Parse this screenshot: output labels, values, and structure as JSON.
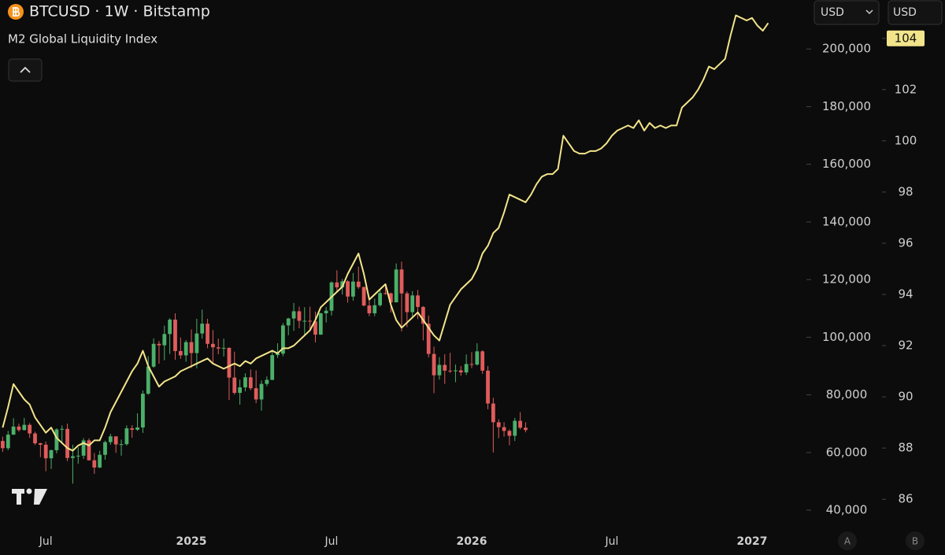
{
  "chart_data": {
    "type": "candlestick",
    "title": "BTCUSD · 1W · Bitstamp",
    "categories": [
      null,
      null,
      null,
      null,
      null,
      null,
      null,
      null,
      "Jul",
      null,
      null,
      null,
      null,
      null,
      null,
      null,
      null,
      null,
      null,
      null,
      null,
      null,
      null,
      null,
      null,
      null,
      null,
      null,
      null,
      null,
      null,
      null,
      null,
      null,
      null,
      "2025",
      null,
      null,
      null,
      null,
      null,
      null,
      null,
      null,
      null,
      null,
      null,
      null,
      null,
      null,
      null,
      null,
      null,
      null,
      null,
      null,
      null,
      null,
      null,
      null,
      null,
      "Jul",
      null,
      null,
      null,
      null,
      null,
      null,
      null,
      null,
      null,
      null,
      null,
      null,
      null,
      null,
      null,
      null,
      null,
      null,
      null,
      null,
      null,
      null,
      null,
      null,
      null,
      "2026",
      null,
      null,
      null,
      null,
      null,
      null,
      null,
      null,
      null,
      null,
      null,
      null,
      null,
      null,
      null,
      null,
      null,
      null,
      null,
      null,
      null,
      null,
      null,
      null,
      null,
      "Jul",
      null,
      null,
      null,
      null,
      null,
      null,
      null,
      null,
      null,
      null,
      null,
      null,
      null,
      null,
      null,
      null,
      null,
      null,
      null,
      null,
      null,
      null,
      null,
      null,
      null,
      "2027",
      null,
      null,
      null,
      null,
      null,
      null,
      null,
      null,
      null
    ],
    "open": [
      64000,
      61500,
      66200,
      69000,
      67800,
      69600,
      66600,
      63200,
      62700,
      58000,
      60800,
      68000,
      68200,
      58100,
      58700,
      58900,
      64200,
      57300,
      54800,
      59200,
      63600,
      65600,
      62800,
      62900,
      68400,
      67900,
      68700,
      80400,
      89800,
      97700,
      97200,
      101100,
      106100,
      95200,
      93700,
      98300,
      94500,
      101300,
      104700,
      97700,
      96500,
      96100,
      96300,
      86000,
      80700,
      82600,
      86100,
      82300,
      78400,
      83800,
      85200,
      93800,
      94300,
      104100,
      106500,
      109000,
      105700,
      105700,
      105500,
      100900,
      108300,
      109200,
      119000,
      117300,
      119400,
      114100,
      119300,
      117400,
      111000,
      108300,
      111100,
      115300,
      115200,
      112100,
      123500,
      115200,
      108700,
      114500,
      110500,
      104700,
      94200,
      86800,
      90400,
      88400,
      88200,
      88500,
      87800,
      90700,
      90500,
      95100,
      88400,
      77000,
      70500,
      68800,
      67500,
      65800,
      71000,
      68600,
      null,
      null,
      null,
      null,
      null,
      null,
      null,
      null,
      null,
      null,
      null,
      null,
      null,
      null,
      null,
      null,
      null,
      null,
      null,
      null,
      null,
      null,
      null,
      null,
      null,
      null,
      null,
      null,
      null,
      null,
      null,
      null,
      null,
      null,
      null,
      null,
      null,
      null,
      null,
      null,
      null,
      null,
      null,
      null,
      null,
      null,
      null,
      null,
      null,
      null,
      null
    ],
    "high": [
      65500,
      67500,
      71900,
      70000,
      72000,
      70200,
      67200,
      63400,
      63800,
      61000,
      68400,
      69400,
      70000,
      62700,
      61800,
      65000,
      64900,
      59800,
      60600,
      64100,
      66500,
      65600,
      64500,
      69400,
      69500,
      73600,
      81500,
      93400,
      99600,
      98700,
      104000,
      106600,
      108300,
      99900,
      99000,
      102700,
      106400,
      109600,
      106400,
      102500,
      99500,
      99500,
      96500,
      95000,
      85300,
      87500,
      88800,
      88500,
      85000,
      86400,
      95700,
      97900,
      104900,
      106700,
      111900,
      110600,
      110400,
      110600,
      108900,
      108500,
      110500,
      119400,
      123200,
      120200,
      119800,
      122300,
      124500,
      117600,
      113400,
      113400,
      116700,
      117900,
      115500,
      125600,
      126200,
      115900,
      116000,
      116400,
      110800,
      107500,
      96700,
      93100,
      94100,
      94600,
      90500,
      90000,
      94000,
      94800,
      97900,
      95500,
      90000,
      79000,
      71500,
      70500,
      68000,
      72000,
      74000,
      70500,
      null,
      null,
      null,
      null,
      null,
      null,
      null,
      null,
      null,
      null,
      null,
      null,
      null,
      null,
      null,
      null,
      null,
      null,
      null,
      null,
      null,
      null,
      null,
      null,
      null,
      null,
      null,
      null,
      null,
      null,
      null,
      null,
      null,
      null,
      null,
      null,
      null,
      null,
      null,
      null,
      null,
      null,
      null,
      null,
      null,
      null,
      null,
      null,
      null,
      null,
      null
    ],
    "low": [
      60200,
      60800,
      66100,
      67200,
      67600,
      65100,
      62600,
      58400,
      53500,
      54300,
      59700,
      63500,
      57000,
      49200,
      56100,
      57800,
      57200,
      52600,
      54600,
      57500,
      62700,
      59900,
      58900,
      62400,
      65100,
      67500,
      66800,
      80000,
      89400,
      90800,
      92000,
      94200,
      92200,
      92500,
      91500,
      89300,
      89200,
      99500,
      96200,
      91200,
      94100,
      93300,
      78200,
      80100,
      76600,
      81200,
      81600,
      77100,
      74500,
      83000,
      85100,
      92800,
      93400,
      100700,
      102200,
      103100,
      100400,
      102700,
      98200,
      100800,
      105100,
      107500,
      115800,
      114800,
      112000,
      112700,
      116800,
      110700,
      107300,
      107300,
      110600,
      114700,
      108600,
      112100,
      102000,
      103500,
      106700,
      106300,
      98900,
      93000,
      80600,
      85300,
      83800,
      87600,
      84400,
      86600,
      86900,
      89300,
      90200,
      87300,
      75000,
      60000,
      65000,
      65500,
      62500,
      64000,
      68000,
      67000,
      null,
      null,
      null,
      null,
      null,
      null,
      null,
      null,
      null,
      null,
      null,
      null,
      null,
      null,
      null,
      null,
      null,
      null,
      null,
      null,
      null,
      null,
      null,
      null,
      null,
      null,
      null,
      null,
      null,
      null,
      null,
      null,
      null,
      null,
      null,
      null,
      null,
      null,
      null,
      null,
      null,
      null,
      null,
      null,
      null,
      null,
      null,
      null,
      null,
      null,
      null
    ],
    "close": [
      61500,
      66200,
      69000,
      67800,
      69600,
      66600,
      63200,
      62700,
      58000,
      60800,
      68000,
      68200,
      58100,
      58700,
      58900,
      64200,
      57300,
      54800,
      59200,
      63600,
      65600,
      62800,
      62900,
      68400,
      67900,
      68700,
      80400,
      89800,
      97700,
      97200,
      101100,
      106100,
      95200,
      93700,
      98300,
      94500,
      101300,
      104700,
      97700,
      96500,
      96100,
      96300,
      86000,
      80700,
      82600,
      86100,
      82300,
      78400,
      83800,
      85200,
      93800,
      94300,
      104100,
      106500,
      109000,
      105700,
      105700,
      105500,
      100900,
      108300,
      109200,
      119000,
      117300,
      119400,
      114100,
      119300,
      117400,
      111000,
      108300,
      111100,
      115300,
      115200,
      112100,
      123500,
      115200,
      108700,
      114500,
      110500,
      104700,
      94200,
      86800,
      90400,
      88400,
      88200,
      88500,
      87800,
      90700,
      90500,
      95100,
      88400,
      77000,
      70500,
      68800,
      67500,
      65800,
      71000,
      68600,
      67800,
      null,
      null,
      null,
      null,
      null,
      null,
      null,
      null,
      null,
      null,
      null,
      null,
      null,
      null,
      null,
      null,
      null,
      null,
      null,
      null,
      null,
      null,
      null,
      null,
      null,
      null,
      null,
      null,
      null,
      null,
      null,
      null,
      null,
      null,
      null,
      null,
      null,
      null,
      null,
      null,
      null,
      null,
      null,
      null,
      null,
      null,
      null,
      null,
      null,
      null,
      null
    ],
    "up_color": "#4caf6a",
    "down_color": "#e05c5c",
    "series": [
      {
        "name": "M2 Global Liquidity Index",
        "type": "line",
        "axis": "y2",
        "color": "#f2e48a",
        "values": [
          88.8,
          89.6,
          90.5,
          90.2,
          89.9,
          89.7,
          89.2,
          88.9,
          88.6,
          88.8,
          88.4,
          88.2,
          88.0,
          87.9,
          88.1,
          88.2,
          88.1,
          88.3,
          88.3,
          88.8,
          89.4,
          89.8,
          90.2,
          90.6,
          91.0,
          91.3,
          91.8,
          91.2,
          90.8,
          90.4,
          90.6,
          90.7,
          90.8,
          91.0,
          91.1,
          91.2,
          91.3,
          91.4,
          91.5,
          91.3,
          91.2,
          91.1,
          91.2,
          91.3,
          91.2,
          91.4,
          91.3,
          91.5,
          91.6,
          91.7,
          91.8,
          91.7,
          91.9,
          91.9,
          92.0,
          92.2,
          92.4,
          92.6,
          93.0,
          93.5,
          93.7,
          93.9,
          94.1,
          94.3,
          94.8,
          95.2,
          95.6,
          94.8,
          93.8,
          94.0,
          94.2,
          94.4,
          93.6,
          93.0,
          92.7,
          92.9,
          93.1,
          93.3,
          93.0,
          92.7,
          92.4,
          92.2,
          92.9,
          93.6,
          93.9,
          94.2,
          94.4,
          94.6,
          95.0,
          95.6,
          95.9,
          96.4,
          96.6,
          97.2,
          97.9,
          97.8,
          97.7,
          97.6,
          97.9,
          98.3,
          98.6,
          98.7,
          98.7,
          98.9,
          100.2,
          99.9,
          99.6,
          99.5,
          99.5,
          99.6,
          99.6,
          99.7,
          99.9,
          100.2,
          100.4,
          100.5,
          100.6,
          100.5,
          100.8,
          100.4,
          100.7,
          100.5,
          100.6,
          100.5,
          100.6,
          100.6,
          101.3,
          101.5,
          101.7,
          102.0,
          102.4,
          102.9,
          102.8,
          103.0,
          103.2,
          104.1,
          104.9,
          104.8,
          104.7,
          104.8,
          104.5,
          104.3,
          104.6,
          null,
          null,
          null,
          null,
          null,
          null
        ]
      }
    ],
    "ylim": [
      34000,
      217000
    ],
    "yticks": [
      {
        "value": 40000,
        "label": "40,000"
      },
      {
        "value": 60000,
        "label": "60,000"
      },
      {
        "value": 80000,
        "label": "80,000"
      },
      {
        "value": 100000,
        "label": "100,000"
      },
      {
        "value": 120000,
        "label": "120,000"
      },
      {
        "value": 140000,
        "label": "140,000"
      },
      {
        "value": 160000,
        "label": "160,000"
      },
      {
        "value": 180000,
        "label": "180,000"
      },
      {
        "value": 200000,
        "label": "200,000"
      }
    ],
    "y2lim": [
      84.9,
      105.5
    ],
    "y2ticks": [
      86,
      88,
      90,
      92,
      94,
      96,
      98,
      100,
      102,
      104
    ],
    "y2_badge_color": "#f2e48a"
  },
  "toolbar": {
    "currency_selectors": [
      "USD",
      "USD"
    ],
    "scale_buttons": [
      "A",
      "B"
    ]
  }
}
